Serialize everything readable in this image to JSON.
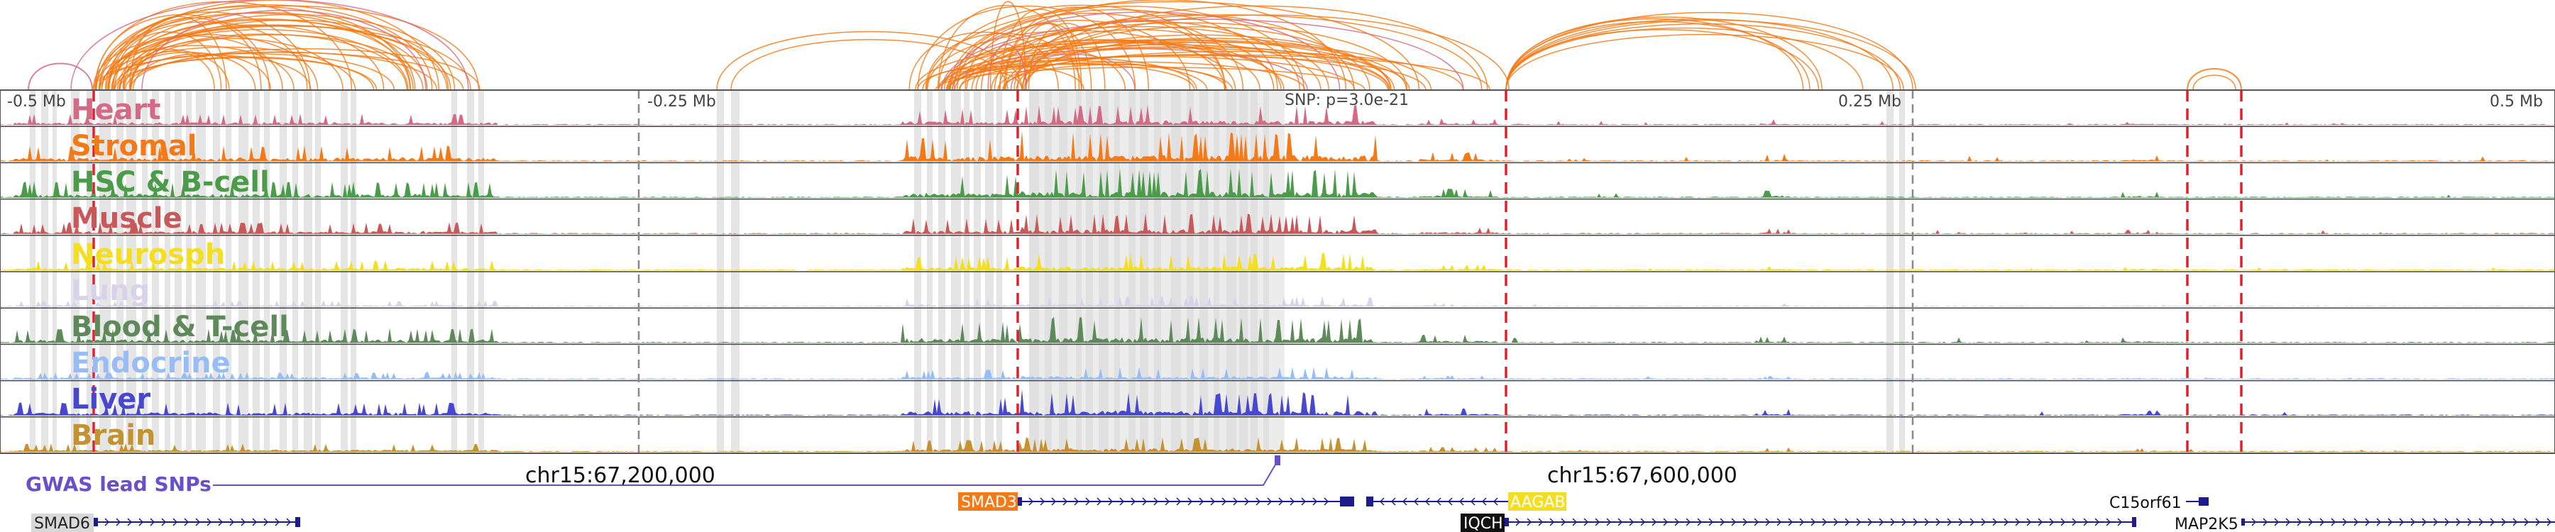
{
  "axis_ticks": [
    "-0.5 Mb",
    "-0.25 Mb",
    "0.25 Mb",
    "0.5 Mb"
  ],
  "snp_label": "SNP: p=3.0e-21",
  "tracks": [
    {
      "name": "Heart",
      "color": "#d36a86"
    },
    {
      "name": "Stromal",
      "color": "#f47a18"
    },
    {
      "name": "HSC & B-cell",
      "color": "#4a9c4a"
    },
    {
      "name": "Muscle",
      "color": "#c8585a"
    },
    {
      "name": "Neurosph",
      "color": "#f5de1e"
    },
    {
      "name": "Lung",
      "color": "#d8d3ea"
    },
    {
      "name": "Blood & T-cell",
      "color": "#5e8a5a"
    },
    {
      "name": "Endocrine",
      "color": "#97bdf4"
    },
    {
      "name": "Liver",
      "color": "#4747cf"
    },
    {
      "name": "Brain",
      "color": "#c4922e"
    }
  ],
  "gwas_label": "GWAS lead SNPs",
  "coord_labels": [
    "chr15:67,200,000",
    "chr15:67,600,000"
  ],
  "genes": [
    {
      "name": "SMAD6",
      "label_bg": "#d9d9d9",
      "label_fg": "#222222"
    },
    {
      "name": "SMAD3",
      "label_bg": "#f47a18",
      "label_fg": "#ffffff"
    },
    {
      "name": "AAGAB",
      "label_bg": "#f5de1e",
      "label_fg": "#ffffff"
    },
    {
      "name": "IQCH",
      "label_bg": "#111111",
      "label_fg": "#ffffff"
    },
    {
      "name": "C15orf61",
      "label_bg": "none",
      "label_fg": "#111111"
    },
    {
      "name": "MAP2K5",
      "label_bg": "none",
      "label_fg": "#111111"
    }
  ],
  "colors": {
    "arc_orange": "#f47a18",
    "arc_pink": "#d36a86",
    "highlight_grey": "#dcdcdc",
    "dashed_red": "#e0202a",
    "gwas_purple": "#6a4fc8",
    "gene_navy": "#1c1c8c"
  }
}
